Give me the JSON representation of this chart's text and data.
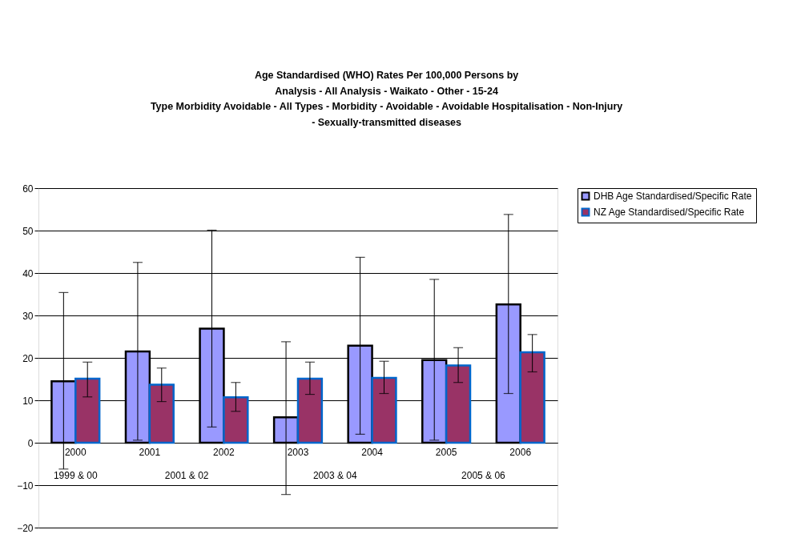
{
  "chart_data": {
    "type": "bar",
    "title": [
      "Age Standardised (WHO) Rates Per 100,000 Persons by",
      "Analysis - All Analysis - Waikato - Other - 15-24",
      "Type Morbidity Avoidable - All Types - Morbidity - Avoidable - Avoidable Hospitalisation - Non-Injury",
      "- Sexually-transmitted diseases"
    ],
    "categories": [
      "2000",
      "2001",
      "2002",
      "2003",
      "2004",
      "2005",
      "2006"
    ],
    "series": [
      {
        "name": "DHB Age Standardised/Specific Rate",
        "color": "#9999ff",
        "values": [
          14.5,
          21.5,
          26.9,
          6.0,
          22.9,
          19.5,
          32.6
        ],
        "errors": [
          [
            -6.2,
            35.4
          ],
          [
            0.6,
            42.5
          ],
          [
            3.7,
            50.1
          ],
          [
            -12.2,
            23.8
          ],
          [
            2.0,
            43.7
          ],
          [
            0.6,
            38.5
          ],
          [
            11.6,
            53.8
          ]
        ]
      },
      {
        "name": "NZ Age Standardised/Specific Rate",
        "color": "#993366",
        "values": [
          15.1,
          13.7,
          10.7,
          15.1,
          15.3,
          18.2,
          21.3
        ],
        "errors": [
          [
            10.8,
            19.0
          ],
          [
            9.7,
            17.6
          ],
          [
            7.4,
            14.2
          ],
          [
            11.4,
            19.0
          ],
          [
            11.6,
            19.2
          ],
          [
            14.2,
            22.4
          ],
          [
            16.7,
            25.5
          ]
        ]
      }
    ],
    "annotations": [
      "1999 & 00",
      "2001 & 02",
      "2003 & 04",
      "2005 & 06"
    ],
    "ylim": [
      -20,
      60
    ],
    "yticks": [
      -20,
      -10,
      0,
      10,
      20,
      30,
      40,
      50,
      60
    ],
    "grid": "y",
    "legend": "right"
  }
}
